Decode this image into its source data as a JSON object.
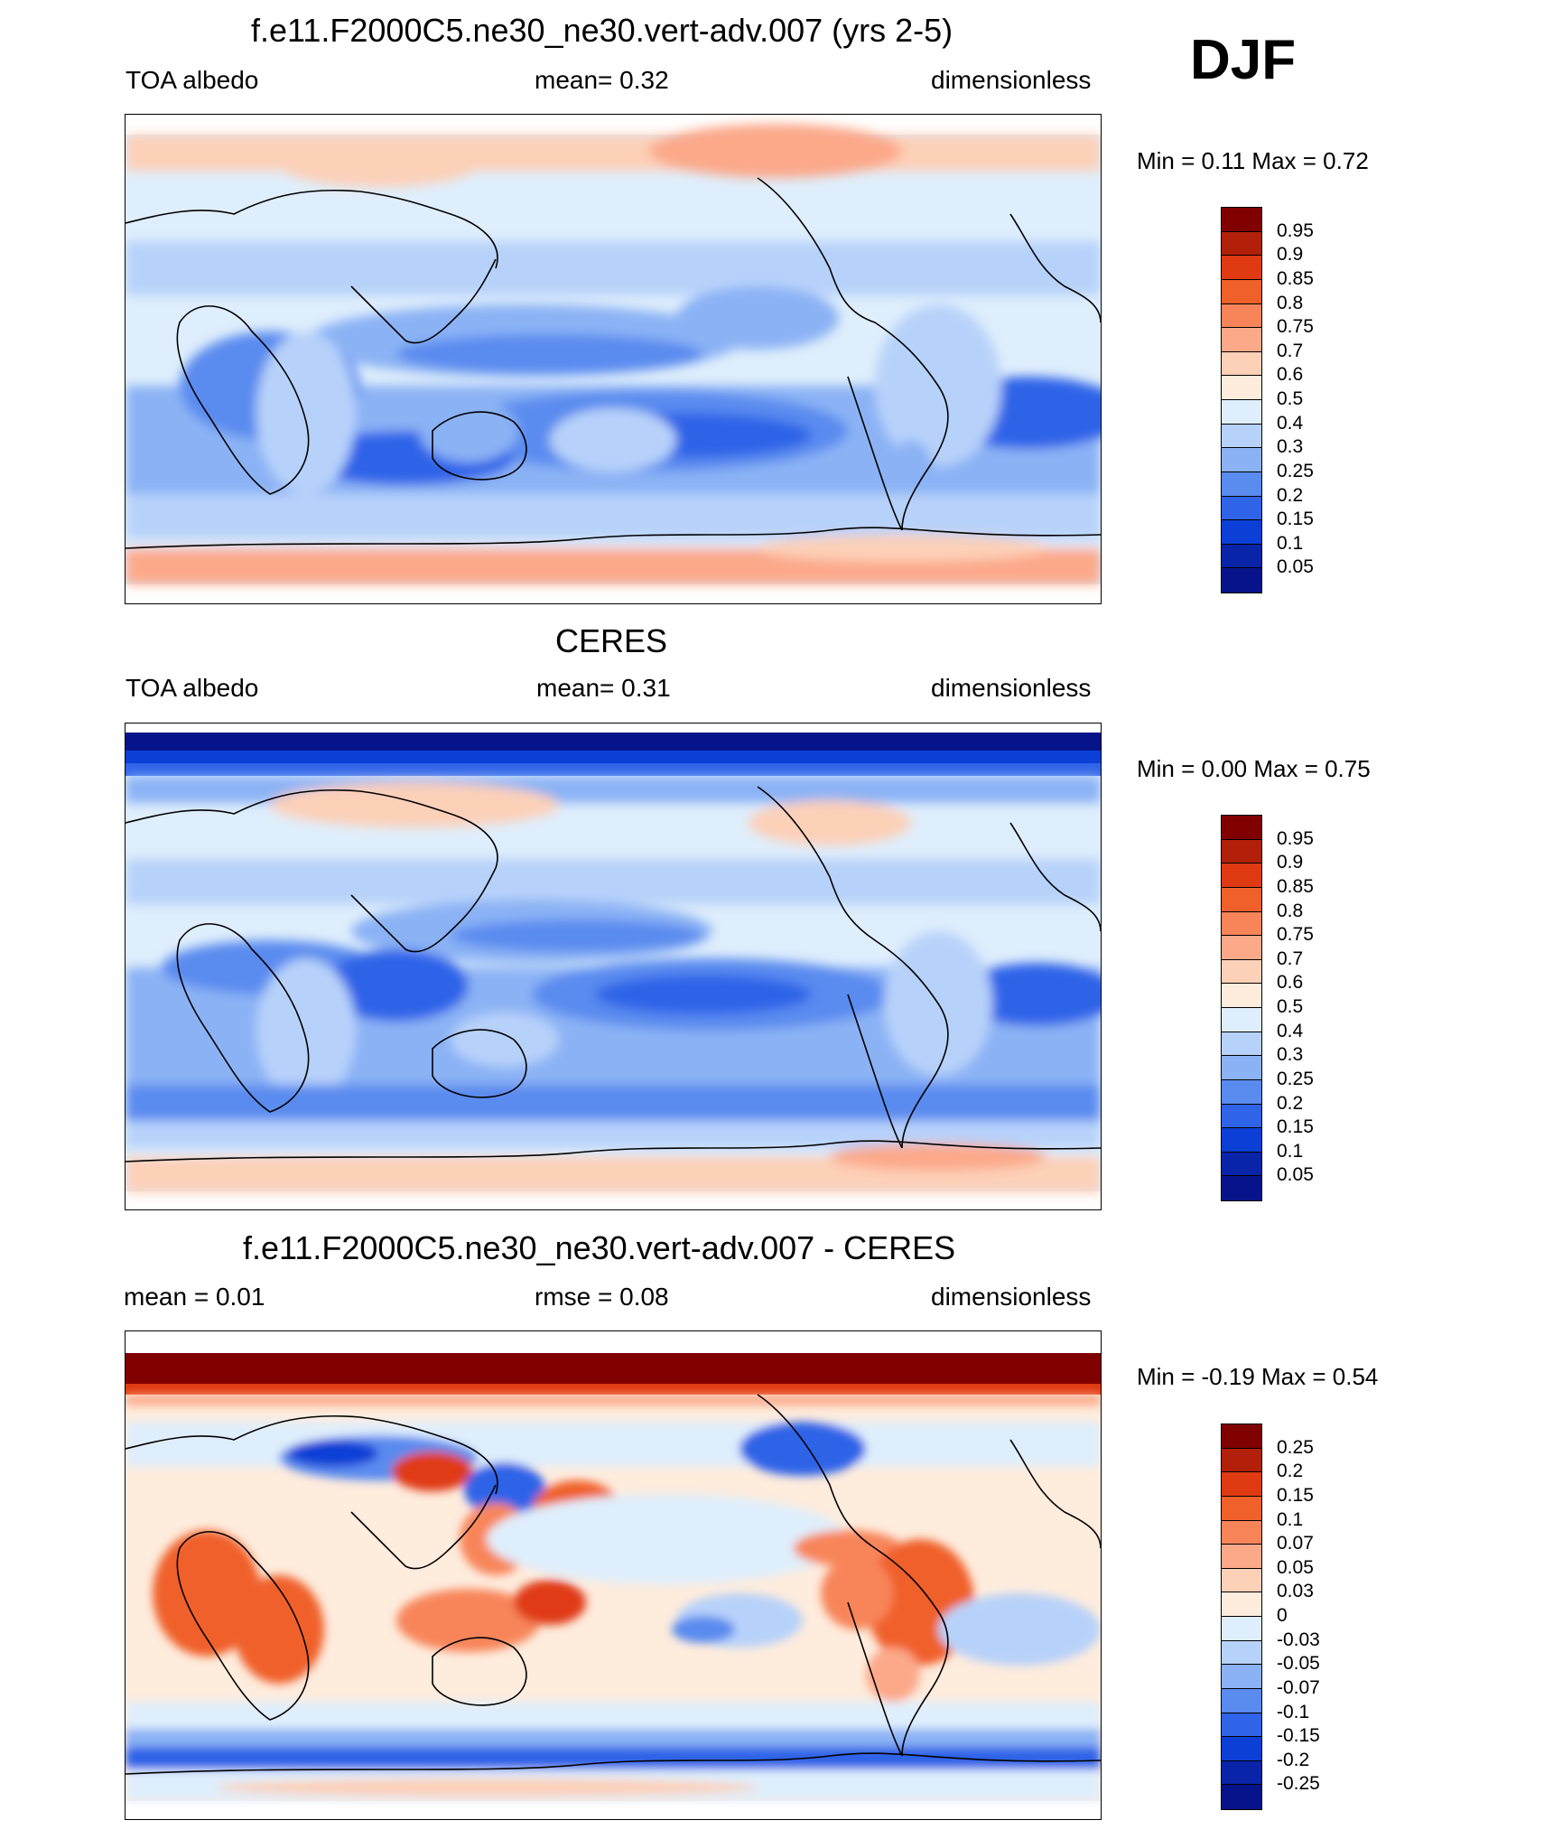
{
  "season_label": "DJF",
  "panels": [
    {
      "title": "f.e11.F2000C5.ne30_ne30.vert-adv.007 (yrs 2-5)",
      "left_label": "TOA albedo",
      "center_label": "mean=   0.32",
      "right_label": "dimensionless",
      "min_max": "Min =   0.11 Max =   0.72",
      "colorbar_labels": [
        "0.95",
        "0.9",
        "0.85",
        "0.8",
        "0.75",
        "0.7",
        "0.6",
        "0.5",
        "0.4",
        "0.3",
        "0.25",
        "0.2",
        "0.15",
        "0.1",
        "0.05"
      ],
      "colorbar_colors": [
        "#800000",
        "#b3200a",
        "#e03a12",
        "#f0602a",
        "#f8855a",
        "#fca98a",
        "#fdd0b8",
        "#feecdd",
        "#dfeefc",
        "#b7d2fa",
        "#8bb2f5",
        "#5a8bef",
        "#2f63e8",
        "#0b3fd6",
        "#0924a8",
        "#07138a"
      ]
    },
    {
      "title": "CERES",
      "left_label": "TOA albedo",
      "center_label": "mean=   0.31",
      "right_label": "dimensionless",
      "min_max": "Min =   0.00 Max =   0.75",
      "colorbar_labels": [
        "0.95",
        "0.9",
        "0.85",
        "0.8",
        "0.75",
        "0.7",
        "0.6",
        "0.5",
        "0.4",
        "0.3",
        "0.25",
        "0.2",
        "0.15",
        "0.1",
        "0.05"
      ],
      "colorbar_colors": [
        "#800000",
        "#b3200a",
        "#e03a12",
        "#f0602a",
        "#f8855a",
        "#fca98a",
        "#fdd0b8",
        "#feecdd",
        "#dfeefc",
        "#b7d2fa",
        "#8bb2f5",
        "#5a8bef",
        "#2f63e8",
        "#0b3fd6",
        "#0924a8",
        "#07138a"
      ]
    },
    {
      "title": "f.e11.F2000C5.ne30_ne30.vert-adv.007 - CERES",
      "left_label": "mean =   0.01",
      "center_label": "rmse =   0.08",
      "right_label": "dimensionless",
      "min_max": "Min =  -0.19 Max =   0.54",
      "colorbar_labels": [
        "0.25",
        "0.2",
        "0.15",
        "0.1",
        "0.07",
        "0.05",
        "0.03",
        "0",
        "-0.03",
        "-0.05",
        "-0.07",
        "-0.1",
        "-0.15",
        "-0.2",
        "-0.25"
      ],
      "colorbar_colors": [
        "#800000",
        "#b3200a",
        "#e03a12",
        "#f0602a",
        "#f8855a",
        "#fca98a",
        "#fdd0b8",
        "#feecdd",
        "#dfeefc",
        "#b7d2fa",
        "#8bb2f5",
        "#5a8bef",
        "#2f63e8",
        "#0b3fd6",
        "#0924a8",
        "#07138a"
      ]
    }
  ]
}
